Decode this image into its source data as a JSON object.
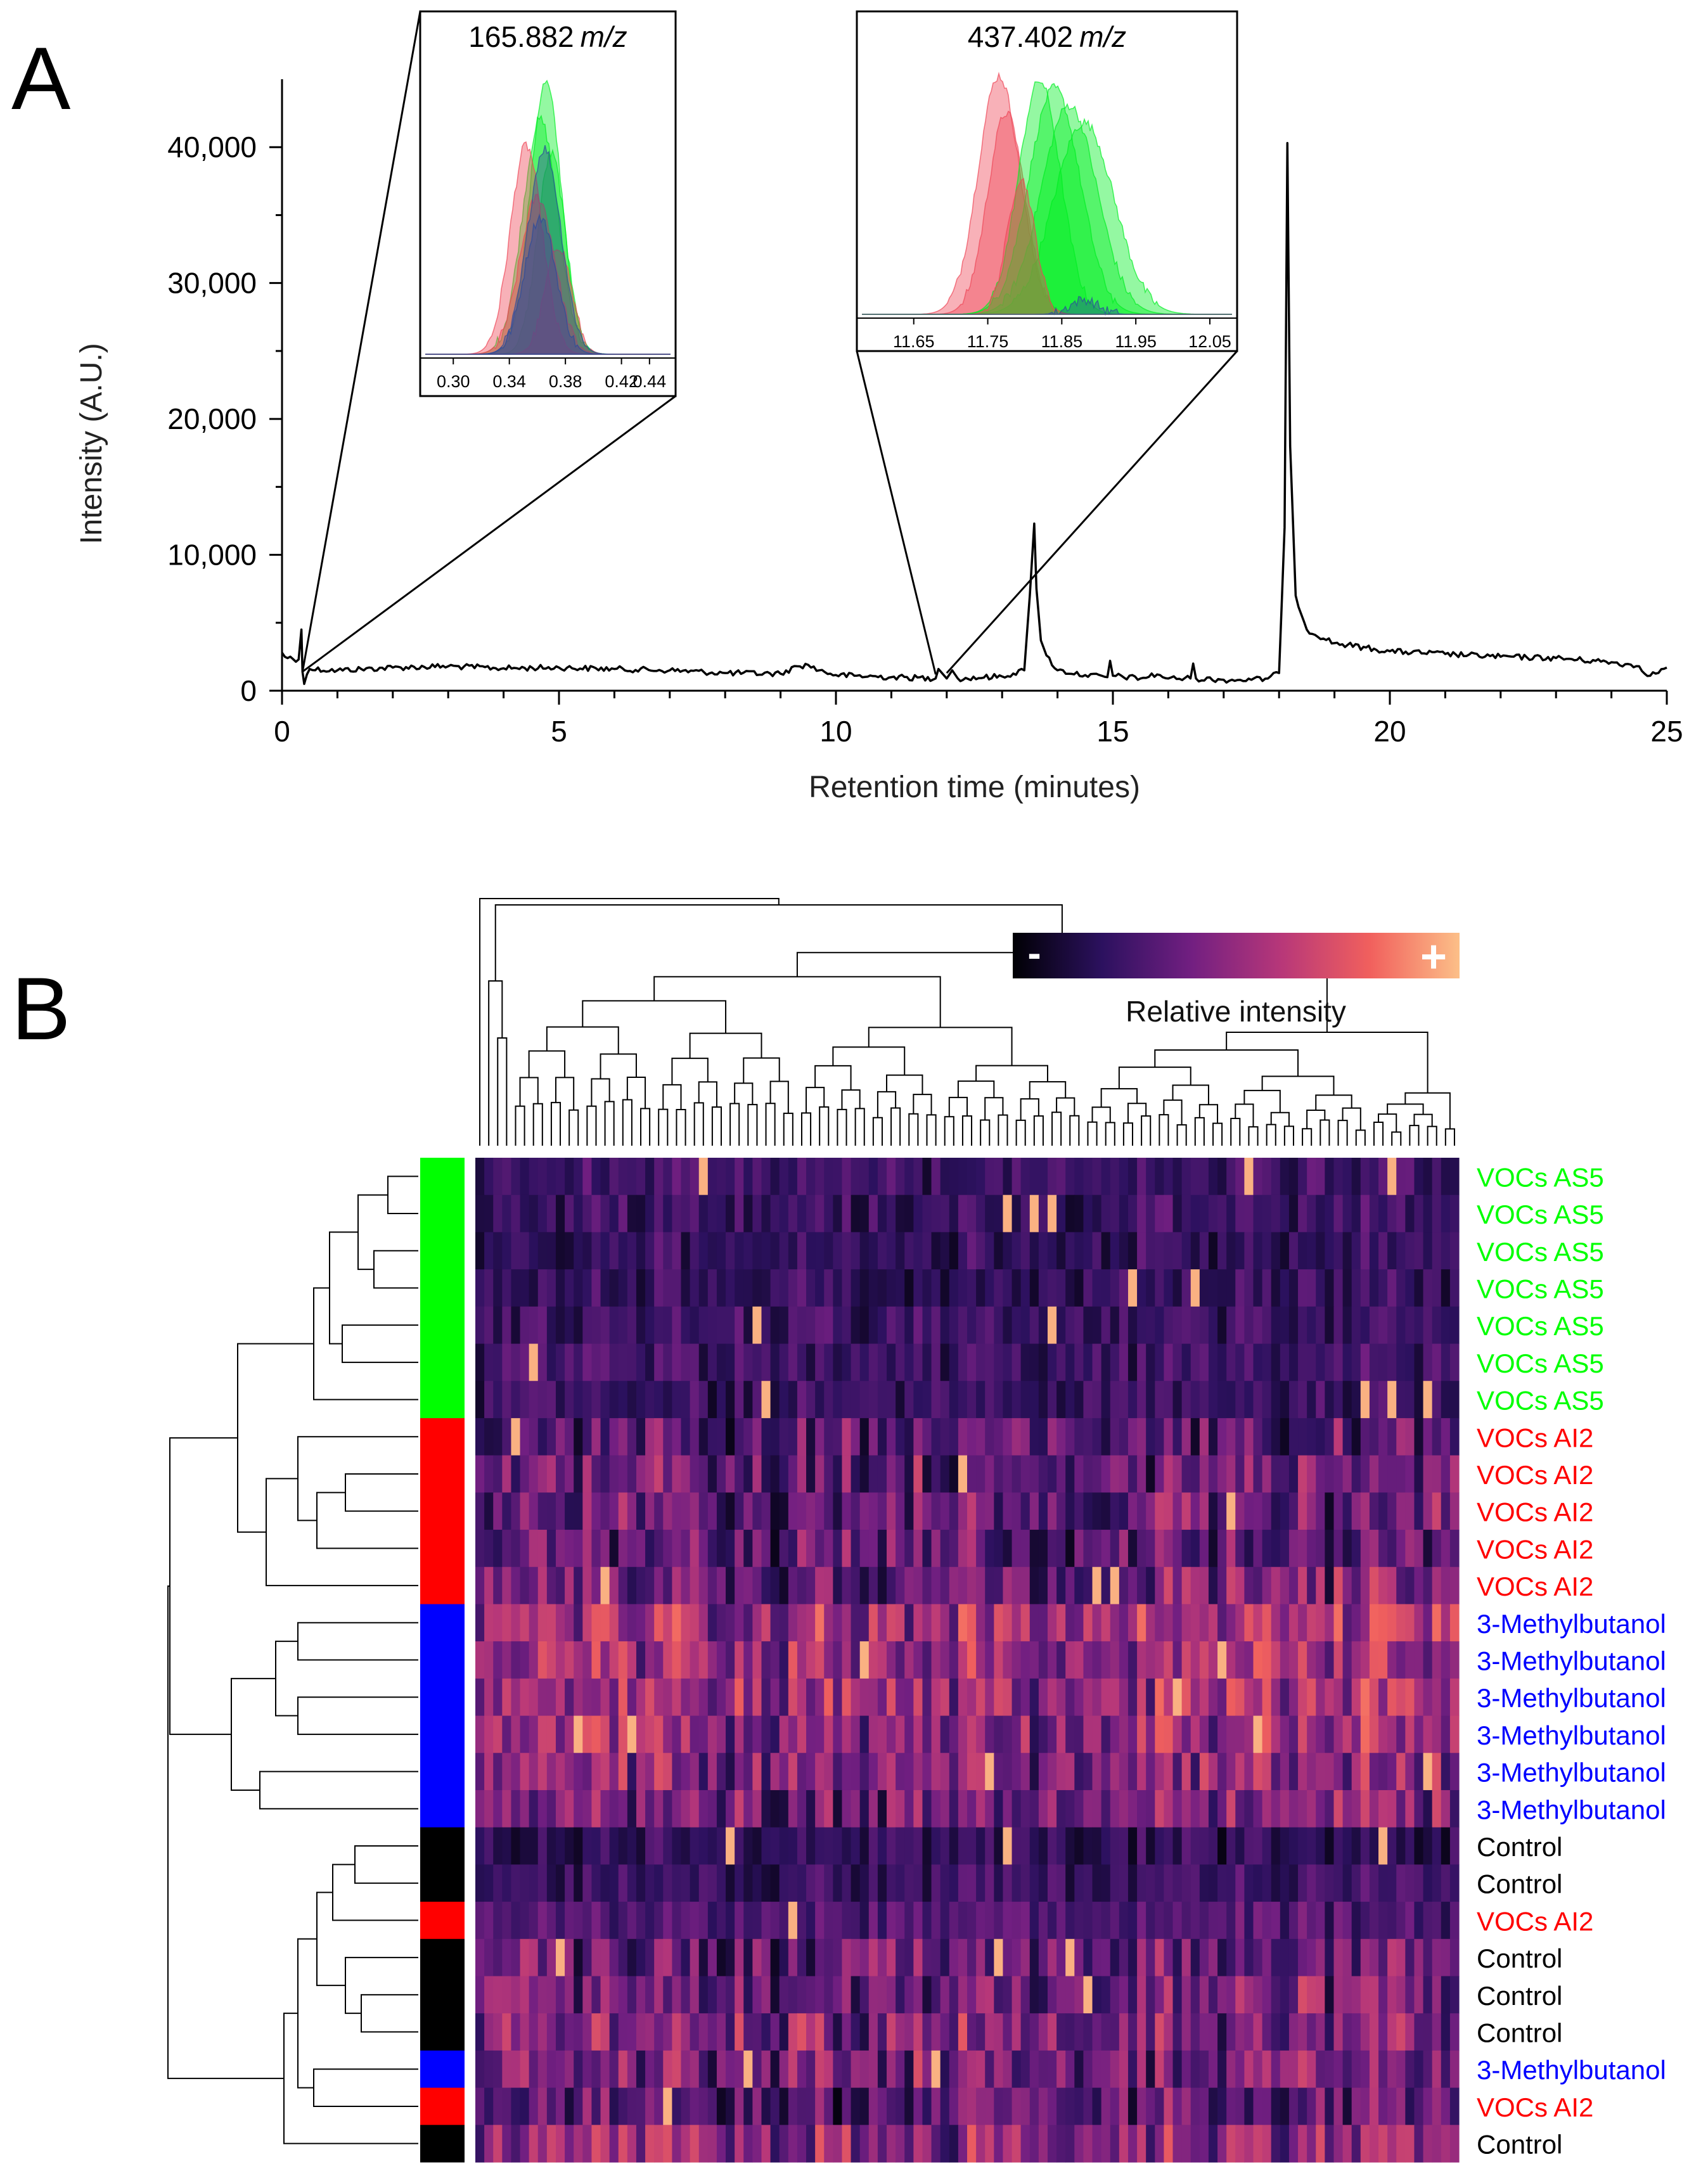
{
  "panels": {
    "a_label": "A",
    "b_label": "B"
  },
  "colors": {
    "line": "#000000",
    "voc_as5": "#00ff00",
    "voc_ai2": "#ff0000",
    "methylbutanol": "#0000ff",
    "control": "#000000",
    "inset_green": "#00ee22",
    "inset_red": "#ee4455",
    "inset_blue": "#2a4b9c"
  },
  "chart_data": [
    {
      "type": "line",
      "panel": "A",
      "title": "",
      "xlabel": "Retention time (minutes)",
      "ylabel": "Intensity (A.U.)",
      "xlim": [
        0,
        25
      ],
      "ylim": [
        0,
        45000
      ],
      "x_ticks": [
        0,
        5,
        10,
        15,
        20,
        25
      ],
      "x_tick_labels": [
        "0",
        "5",
        "10",
        "15",
        "20",
        "25"
      ],
      "y_ticks": [
        0,
        10000,
        20000,
        30000,
        40000
      ],
      "y_tick_labels": [
        "0",
        "10,000",
        "20,000",
        "30,000",
        "40,000"
      ],
      "series": [
        {
          "name": "chromatogram",
          "x": [
            0.0,
            0.05,
            0.3,
            0.35,
            0.37,
            0.4,
            0.45,
            0.5,
            1.0,
            2.0,
            3.0,
            4.0,
            5.0,
            6.0,
            7.0,
            8.0,
            9.0,
            9.3,
            9.5,
            9.7,
            10.0,
            11.0,
            11.8,
            11.85,
            12.0,
            12.1,
            12.2,
            13.0,
            13.4,
            13.5,
            13.58,
            13.62,
            13.7,
            13.8,
            14.0,
            14.5,
            14.9,
            14.95,
            15.0,
            15.5,
            15.8,
            16.0,
            16.4,
            16.45,
            16.5,
            17.0,
            17.5,
            17.8,
            18.0,
            18.1,
            18.15,
            18.2,
            18.3,
            18.5,
            19.0,
            20.0,
            21.0,
            22.0,
            23.0,
            24.0,
            24.5,
            24.7,
            25.0
          ],
          "y": [
            2800,
            2500,
            2300,
            4500,
            1400,
            500,
            1200,
            1600,
            1500,
            1700,
            1800,
            1650,
            1700,
            1600,
            1500,
            1300,
            1250,
            1800,
            1900,
            1500,
            1150,
            1000,
            900,
            1600,
            900,
            1500,
            900,
            1050,
            1500,
            7000,
            12300,
            7500,
            3700,
            2600,
            1500,
            1150,
            1000,
            2200,
            1100,
            900,
            1200,
            900,
            900,
            2000,
            900,
            800,
            800,
            900,
            1300,
            12000,
            40300,
            18000,
            7000,
            4500,
            3500,
            2900,
            2700,
            2500,
            2400,
            2100,
            1800,
            1100,
            1700
          ]
        }
      ],
      "insets": [
        {
          "title_number": "165.882",
          "title_unit": "m/z",
          "xlim": [
            0.28,
            0.455
          ],
          "x_ticks": [
            0.3,
            0.34,
            0.38,
            0.42,
            0.44
          ],
          "x_tick_labels": [
            "0.30",
            "0.34",
            "0.38",
            "0.42",
            "0.44"
          ],
          "zoom_x": 0.37,
          "zoom_y": 1400,
          "peaks": [
            {
              "group": "VOCs AS5",
              "center": 0.366,
              "width": 0.018,
              "height": 0.95
            },
            {
              "group": "VOCs AS5",
              "center": 0.362,
              "width": 0.02,
              "height": 0.82
            },
            {
              "group": "VOCs AS5",
              "center": 0.37,
              "width": 0.016,
              "height": 0.7
            },
            {
              "group": "VOCs AI2",
              "center": 0.352,
              "width": 0.018,
              "height": 0.73
            },
            {
              "group": "VOCs AI2",
              "center": 0.36,
              "width": 0.02,
              "height": 0.55
            },
            {
              "group": "VOCs AI2",
              "center": 0.375,
              "width": 0.015,
              "height": 0.38
            },
            {
              "group": "3-Methylbutanol",
              "center": 0.365,
              "width": 0.019,
              "height": 0.72
            },
            {
              "group": "3-Methylbutanol",
              "center": 0.362,
              "width": 0.018,
              "height": 0.48
            }
          ]
        },
        {
          "title_number": "437.402",
          "title_unit": "m/z",
          "xlim": [
            11.58,
            12.08
          ],
          "x_ticks": [
            11.65,
            11.75,
            11.85,
            11.95,
            12.05
          ],
          "x_tick_labels": [
            "11.65",
            "11.75",
            "11.85",
            "11.95",
            "12.05"
          ],
          "zoom_x": 11.85,
          "zoom_y": 1300,
          "peaks": [
            {
              "group": "VOCs AI2",
              "center": 11.765,
              "width": 0.045,
              "height": 0.97
            },
            {
              "group": "VOCs AI2",
              "center": 11.775,
              "width": 0.04,
              "height": 0.82
            },
            {
              "group": "VOCs AS5",
              "center": 11.84,
              "width": 0.055,
              "height": 0.92
            },
            {
              "group": "VOCs AS5",
              "center": 11.86,
              "width": 0.06,
              "height": 0.85
            },
            {
              "group": "VOCs AS5",
              "center": 11.88,
              "width": 0.065,
              "height": 0.78
            },
            {
              "group": "VOCs AS5",
              "center": 11.82,
              "width": 0.045,
              "height": 0.95
            },
            {
              "group": "VOCs AI2",
              "center": 11.795,
              "width": 0.03,
              "height": 0.55
            },
            {
              "group": "3-Methylbutanol",
              "center": 11.88,
              "width": 0.03,
              "height": 0.06
            }
          ]
        }
      ]
    },
    {
      "type": "heatmap",
      "panel": "B",
      "title": "",
      "colorbar": {
        "label": "Relative intensity",
        "min_label": "-",
        "max_label": "+",
        "stops": [
          "#000004",
          "#2c115f",
          "#721f81",
          "#b73779",
          "#f1605d",
          "#fcbf88"
        ]
      },
      "n_columns": 110,
      "rows": [
        {
          "label": "VOCs AS5",
          "group": "VOCs AS5",
          "mean": 0.24
        },
        {
          "label": "VOCs AS5",
          "group": "VOCs AS5",
          "mean": 0.23
        },
        {
          "label": "VOCs AS5",
          "group": "VOCs AS5",
          "mean": 0.22
        },
        {
          "label": "VOCs AS5",
          "group": "VOCs AS5",
          "mean": 0.22
        },
        {
          "label": "VOCs AS5",
          "group": "VOCs AS5",
          "mean": 0.24
        },
        {
          "label": "VOCs AS5",
          "group": "VOCs AS5",
          "mean": 0.24
        },
        {
          "label": "VOCs AS5",
          "group": "VOCs AS5",
          "mean": 0.23
        },
        {
          "label": "VOCs AI2",
          "group": "VOCs AI2",
          "mean": 0.33
        },
        {
          "label": "VOCs AI2",
          "group": "VOCs AI2",
          "mean": 0.38
        },
        {
          "label": "VOCs AI2",
          "group": "VOCs AI2",
          "mean": 0.36
        },
        {
          "label": "VOCs AI2",
          "group": "VOCs AI2",
          "mean": 0.34
        },
        {
          "label": "VOCs AI2",
          "group": "VOCs AI2",
          "mean": 0.4
        },
        {
          "label": "3-Methylbutanol",
          "group": "3-Methylbutanol",
          "mean": 0.55
        },
        {
          "label": "3-Methylbutanol",
          "group": "3-Methylbutanol",
          "mean": 0.52
        },
        {
          "label": "3-Methylbutanol",
          "group": "3-Methylbutanol",
          "mean": 0.53
        },
        {
          "label": "3-Methylbutanol",
          "group": "3-Methylbutanol",
          "mean": 0.5
        },
        {
          "label": "3-Methylbutanol",
          "group": "3-Methylbutanol",
          "mean": 0.46
        },
        {
          "label": "3-Methylbutanol",
          "group": "3-Methylbutanol",
          "mean": 0.42
        },
        {
          "label": "Control",
          "group": "Control",
          "mean": 0.2
        },
        {
          "label": "Control",
          "group": "Control",
          "mean": 0.25
        },
        {
          "label": "VOCs AI2",
          "group": "VOCs AI2",
          "mean": 0.3
        },
        {
          "label": "Control",
          "group": "Control",
          "mean": 0.38
        },
        {
          "label": "Control",
          "group": "Control",
          "mean": 0.4
        },
        {
          "label": "Control",
          "group": "Control",
          "mean": 0.45
        },
        {
          "label": "3-Methylbutanol",
          "group": "3-Methylbutanol",
          "mean": 0.42
        },
        {
          "label": "VOCs AI2",
          "group": "VOCs AI2",
          "mean": 0.33
        },
        {
          "label": "Control",
          "group": "Control",
          "mean": 0.48
        }
      ]
    }
  ]
}
